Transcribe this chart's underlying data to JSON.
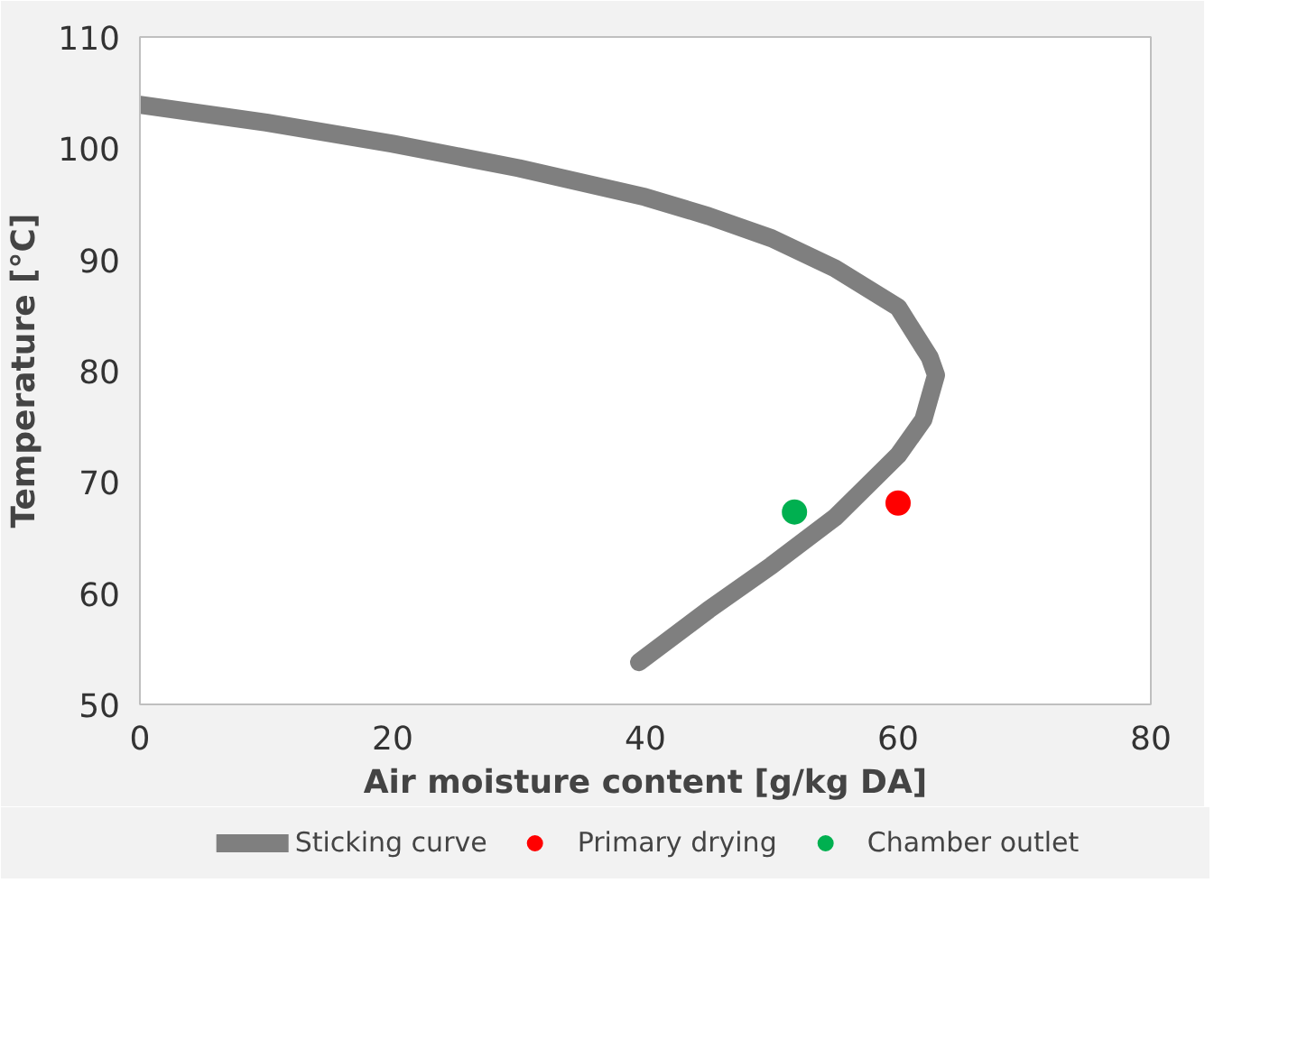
{
  "chart_data": {
    "type": "line",
    "xlabel": "Air moisture content [g/kg DA]",
    "ylabel": "Temperature [°C]",
    "xlim": [
      0,
      80
    ],
    "ylim": [
      50,
      110
    ],
    "xticks": [
      0,
      20,
      40,
      60,
      80
    ],
    "yticks": [
      50,
      60,
      70,
      80,
      90,
      100,
      110
    ],
    "grid": false,
    "legend": "bottom",
    "line_style": "solid",
    "series": [
      {
        "name": "Sticking curve",
        "color": "#7f7f7f",
        "x": [
          0,
          10,
          20,
          30,
          40,
          45,
          50,
          55,
          60,
          62.5,
          63,
          62,
          60,
          55,
          50,
          45,
          39.5
        ],
        "values": [
          103.9,
          102.3,
          100.4,
          98.2,
          95.6,
          93.9,
          91.9,
          89.2,
          85.7,
          81.2,
          79.6,
          75.6,
          72.4,
          66.8,
          62.5,
          58.5,
          53.8
        ]
      },
      {
        "name": "Primary drying",
        "type": "scatter",
        "color": "#ff0000",
        "x": [
          60
        ],
        "values": [
          68.1
        ]
      },
      {
        "name": "Chamber outlet",
        "type": "scatter",
        "color": "#00b050",
        "x": [
          51.8
        ],
        "values": [
          67.3
        ]
      }
    ]
  }
}
